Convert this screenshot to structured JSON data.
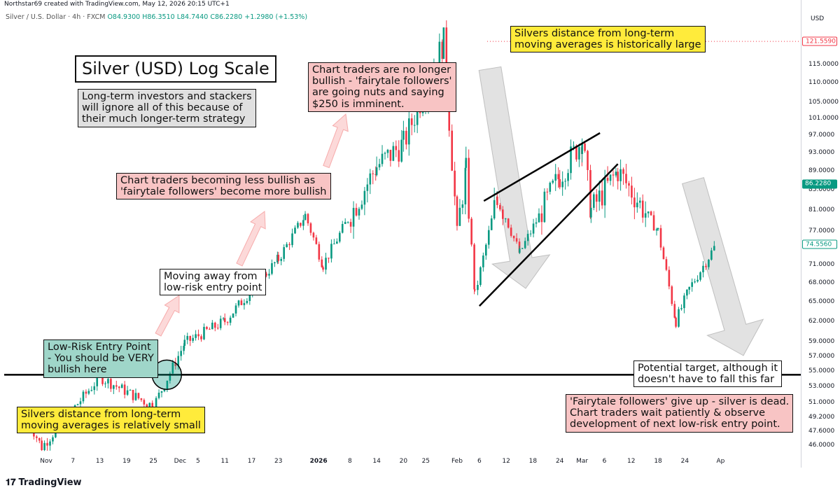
{
  "header": {
    "created_by": "Northstar69 created with TradingView.com, May 12, 2026 20:15 UTC+1",
    "symbol": "Silver / U.S. Dollar · 4h · FXCM",
    "open": "O84.9300",
    "high": "H86.3510",
    "low": "L84.7440",
    "close": "C86.2280",
    "change": "+1.2980 (+1.53%)"
  },
  "axis": {
    "unit": "USD",
    "scale": "log",
    "y_ticks": [
      "115.0000",
      "110.0000",
      "105.0000",
      "101.0000",
      "97.0000",
      "93.0000",
      "89.0000",
      "85.0000",
      "81.0000",
      "77.0000",
      "71.0000",
      "68.0000",
      "65.0000",
      "62.0000",
      "59.0000",
      "57.0000",
      "55.0000",
      "53.0000",
      "51.0000",
      "49.2000",
      "47.6000",
      "46.0000"
    ],
    "x_ticks": [
      {
        "label": "Nov",
        "bold": false
      },
      {
        "label": "7",
        "bold": false
      },
      {
        "label": "13",
        "bold": false
      },
      {
        "label": "19",
        "bold": false
      },
      {
        "label": "25",
        "bold": false
      },
      {
        "label": "Dec",
        "bold": false
      },
      {
        "label": "5",
        "bold": false
      },
      {
        "label": "11",
        "bold": false
      },
      {
        "label": "17",
        "bold": false
      },
      {
        "label": "23",
        "bold": false
      },
      {
        "label": "2026",
        "bold": true
      },
      {
        "label": "8",
        "bold": false
      },
      {
        "label": "14",
        "bold": false
      },
      {
        "label": "20",
        "bold": false
      },
      {
        "label": "25",
        "bold": false
      },
      {
        "label": "Feb",
        "bold": false
      },
      {
        "label": "6",
        "bold": false
      },
      {
        "label": "12",
        "bold": false
      },
      {
        "label": "18",
        "bold": false
      },
      {
        "label": "24",
        "bold": false
      },
      {
        "label": "Mar",
        "bold": false
      },
      {
        "label": "6",
        "bold": false
      },
      {
        "label": "12",
        "bold": false
      },
      {
        "label": "18",
        "bold": false
      },
      {
        "label": "24",
        "bold": false
      },
      {
        "label": "Ap",
        "bold": false
      }
    ],
    "price_labels": [
      {
        "text": "121.5590",
        "color": "#f23645",
        "kind": "outline"
      },
      {
        "text": "86.2280",
        "color": "#089981",
        "kind": "filled"
      },
      {
        "text": "74.5560",
        "color": "#089981",
        "kind": "outline"
      }
    ]
  },
  "annotations": {
    "title": "Silver (USD) Log Scale",
    "investors": "Long-term investors and stackers\nwill ignore all of this because of\ntheir much longer-term strategy",
    "no_longer_bullish": "Chart traders are no longer\nbullish - 'fairytale followers'\nare going nuts and saying\n$250 is imminent.",
    "distance_large": "Silvers distance from long-term\nmoving averages is historically large",
    "less_bullish": "Chart traders becoming less bullish as\n'fairytale followers' become more bullish",
    "moving_away": "Moving away from\nlow-risk entry point",
    "low_risk": "Low-Risk Entry Point\n- You should be VERY\nbullish here",
    "distance_small": "Silvers distance from long-term\nmoving averages is relatively small",
    "potential_target": "Potential target, although it\ndoesn't have to fall this far",
    "give_up": "'Fairytale followers' give up - silver is dead.\nChart traders wait patiently & observe\ndevelopment of next low-risk entry point."
  },
  "colors": {
    "up": "#089981",
    "down": "#f23645",
    "yellow": "#ffeb3b",
    "pink": "#f8c4c4",
    "teal": "#9fd6c9",
    "gray": "#e0e0e0"
  },
  "chart_data": {
    "type": "candlestick",
    "instrument": "Silver / U.S. Dollar",
    "interval": "4h",
    "source": "FXCM",
    "y_scale": "log",
    "ylim": [
      44.5,
      132
    ],
    "horizontal_line": 54.5,
    "key_points": [
      {
        "date": "Oct 28",
        "price": 48.8
      },
      {
        "date": "Oct 31",
        "price": 45.8
      },
      {
        "date": "Nov 13",
        "price": 54.2
      },
      {
        "date": "Nov 25",
        "price": 50.5
      },
      {
        "date": "Dec 2",
        "price": 58.8
      },
      {
        "date": "Dec 11",
        "price": 62.0
      },
      {
        "date": "Dec 23",
        "price": 72.0
      },
      {
        "date": "Dec 29",
        "price": 80.0
      },
      {
        "date": "Jan 2",
        "price": 71.0
      },
      {
        "date": "Jan 14",
        "price": 90.0
      },
      {
        "date": "Jan 20",
        "price": 95.0
      },
      {
        "date": "Jan 29",
        "price": 121.559
      },
      {
        "date": "Feb 1",
        "price": 77.0
      },
      {
        "date": "Feb 3",
        "price": 89.0
      },
      {
        "date": "Feb 5",
        "price": 66.0
      },
      {
        "date": "Feb 10",
        "price": 84.0
      },
      {
        "date": "Feb 15",
        "price": 73.0
      },
      {
        "date": "Feb 24",
        "price": 88.0
      },
      {
        "date": "Mar 1",
        "price": 96.0
      },
      {
        "date": "Mar 3",
        "price": 81.0
      },
      {
        "date": "Mar 9",
        "price": 89.0
      },
      {
        "date": "Mar 18",
        "price": 77.0
      },
      {
        "date": "Mar 22",
        "price": 62.0
      },
      {
        "date": "Mar 25",
        "price": 67.0
      },
      {
        "date": "Mar 31",
        "price": 74.556
      }
    ]
  }
}
